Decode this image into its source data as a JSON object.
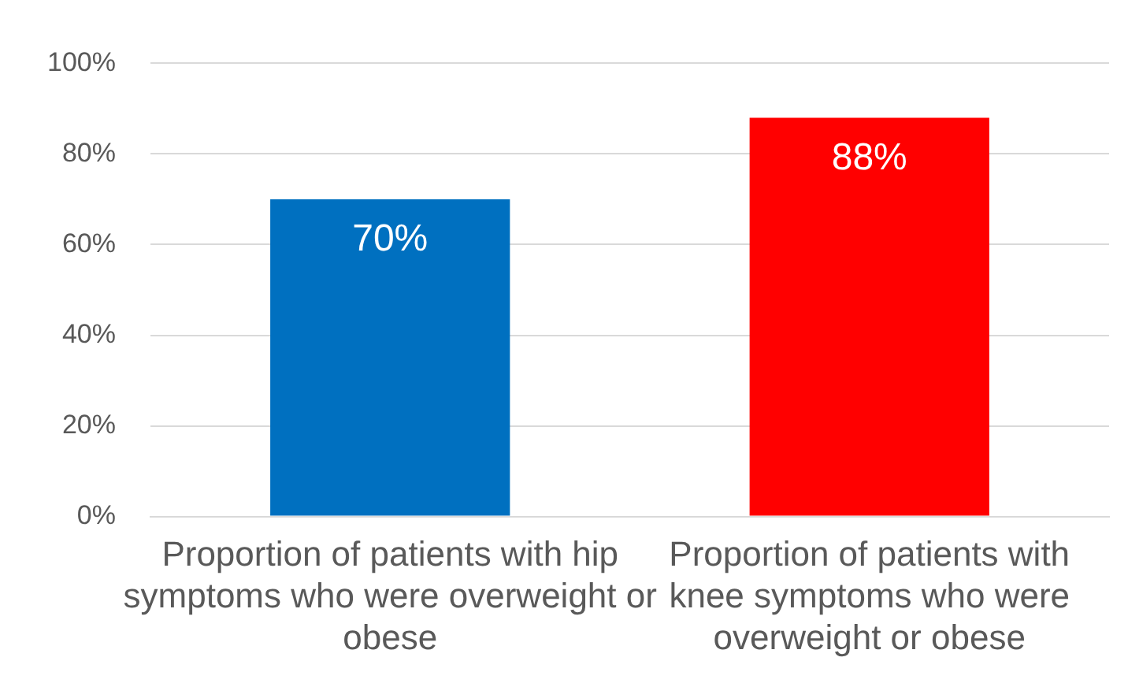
{
  "chart_data": {
    "type": "bar",
    "categories": [
      "Proportion of patients with hip symptoms who were overweight or obese",
      "Proportion of patients with knee symptoms who were overweight or obese"
    ],
    "values": [
      70,
      88
    ],
    "colors": [
      "#0070c0",
      "#ff0000"
    ],
    "ylim": [
      0,
      100
    ],
    "yticks": [
      {
        "value": 0,
        "label": "0%"
      },
      {
        "value": 20,
        "label": "20%"
      },
      {
        "value": 40,
        "label": "40%"
      },
      {
        "value": 60,
        "label": "60%"
      },
      {
        "value": 80,
        "label": "80%"
      },
      {
        "value": 100,
        "label": "100%"
      }
    ],
    "value_labels": [
      "70%",
      "88%"
    ],
    "grid": "y",
    "legend": false
  }
}
